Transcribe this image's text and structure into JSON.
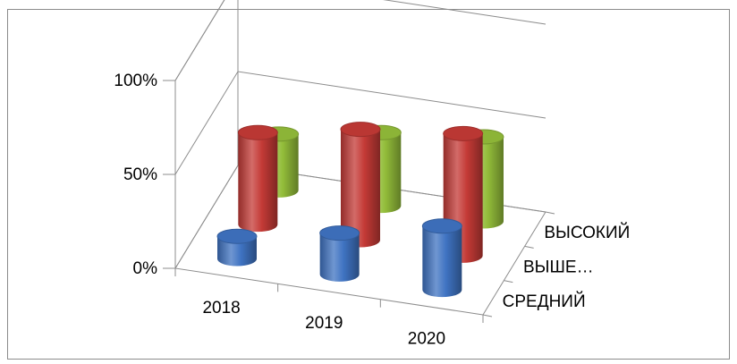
{
  "chart_data": {
    "type": "bar",
    "style": "3d-cylinder",
    "categories": [
      "2018",
      "2019",
      "2020"
    ],
    "series": [
      {
        "name": "СРЕДНИЙ",
        "color": "#3f73c2",
        "values": [
          12,
          22,
          34
        ]
      },
      {
        "name": "ВЫШЕ…",
        "color": "#c43a36",
        "values": [
          49,
          59,
          65
        ]
      },
      {
        "name": "ВЫСОКИЙ",
        "color": "#93bd3a",
        "values": [
          30,
          39,
          45
        ]
      }
    ],
    "y_ticks": [
      "0%",
      "50%",
      "100%"
    ],
    "ylim": [
      0,
      100
    ],
    "grid": true,
    "legend": "none"
  }
}
